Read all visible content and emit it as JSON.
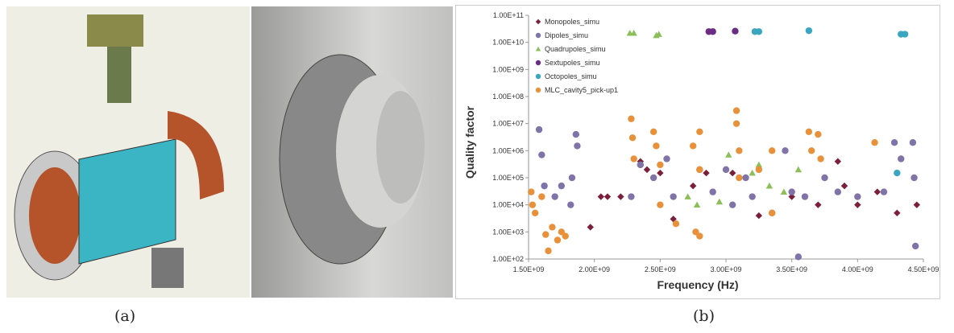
{
  "captions": [
    "(a)",
    "(b)"
  ],
  "chart_data": {
    "type": "scatter",
    "x_label": "Frequency (Hz)",
    "y_label": "Quality factor",
    "log_y": true,
    "legend": "top-left",
    "xlim": [
      1500000000,
      4500000000
    ],
    "xticks": [
      {
        "value": 1500000000,
        "label": "1.50E+09"
      },
      {
        "value": 2000000000,
        "label": "2.00E+09"
      },
      {
        "value": 2500000000,
        "label": "2.50E+09"
      },
      {
        "value": 3000000000,
        "label": "3.00E+09"
      },
      {
        "value": 3500000000,
        "label": "3.50E+09"
      },
      {
        "value": 4000000000,
        "label": "4.00E+09"
      },
      {
        "value": 4500000000,
        "label": "4.50E+09"
      }
    ],
    "ylim": [
      100,
      100000000000
    ],
    "yticks": [
      {
        "value": 100,
        "label": "1.00E+02"
      },
      {
        "value": 1000,
        "label": "1.00E+03"
      },
      {
        "value": 10000,
        "label": "1.00E+04"
      },
      {
        "value": 100000,
        "label": "1.00E+05"
      },
      {
        "value": 1000000,
        "label": "1.00E+06"
      },
      {
        "value": 10000000,
        "label": "1.00E+07"
      },
      {
        "value": 100000000,
        "label": "1.00E+08"
      },
      {
        "value": 1000000000,
        "label": "1.00E+09"
      },
      {
        "value": 10000000000,
        "label": "1.00E+10"
      },
      {
        "value": 100000000000,
        "label": "1.00E+11"
      }
    ],
    "series": [
      {
        "name": "Monopoles_simu",
        "color": "#7b1f3a",
        "marker": "diamond",
        "x": [
          1970000000,
          2050000000,
          2100000000,
          2200000000,
          2350000000,
          2400000000,
          2500000000,
          2600000000,
          2750000000,
          2850000000,
          3050000000,
          3250000000,
          3500000000,
          3700000000,
          3850000000,
          3900000000,
          4000000000,
          4150000000,
          4300000000,
          4450000000
        ],
        "y": [
          1500,
          20000,
          20000,
          20000,
          400000,
          200000,
          150000,
          3000,
          50000,
          150000,
          150000,
          4000,
          20000,
          10000,
          400000,
          50000,
          10000,
          30000,
          5000,
          10000
        ]
      },
      {
        "name": "Dipoles_simu",
        "color": "#7f73a8",
        "marker": "circle",
        "x": [
          1580000000,
          1600000000,
          1620000000,
          1700000000,
          1750000000,
          1820000000,
          1830000000,
          1860000000,
          1870000000,
          2280000000,
          2350000000,
          2450000000,
          2550000000,
          2600000000,
          2800000000,
          2900000000,
          3000000000,
          3050000000,
          3150000000,
          3200000000,
          3350000000,
          3450000000,
          3500000000,
          3550000000,
          3600000000,
          3750000000,
          3850000000,
          4000000000,
          4200000000,
          4280000000,
          4330000000,
          4420000000,
          4430000000,
          4440000000
        ],
        "y": [
          6000000,
          700000,
          50000,
          20000,
          50000,
          10000,
          100000,
          4000000,
          1500000,
          20000,
          300000,
          100000,
          500000,
          20000,
          200000,
          30000,
          200000,
          10000,
          100000,
          20000,
          5000,
          1000000,
          30000,
          120,
          20000,
          100000,
          30000,
          20000,
          30000,
          2000000,
          500000,
          2000000,
          100000,
          300
        ]
      },
      {
        "name": "Quadrupoles_simu",
        "color": "#8cbf5a",
        "marker": "triangle",
        "x": [
          2270000000,
          2300000000,
          2470000000,
          2490000000,
          2710000000,
          2780000000,
          2950000000,
          3020000000,
          3200000000,
          3250000000,
          3330000000,
          3440000000,
          3550000000
        ],
        "y": [
          22000000000,
          22000000000,
          18000000000,
          20000000000,
          20000,
          10000,
          13000,
          700000,
          150000,
          300000,
          50000,
          30000,
          200000
        ]
      },
      {
        "name": "Sextupoles_simu",
        "color": "#6b2d84",
        "marker": "circle",
        "x": [
          2870000000,
          2900000000,
          3070000000
        ],
        "y": [
          25000000000,
          25000000000,
          26000000000
        ]
      },
      {
        "name": "Octopoles_simu",
        "color": "#3aa6c0",
        "marker": "circle",
        "x": [
          3220000000,
          3250000000,
          3630000000,
          4300000000,
          4330000000,
          4360000000
        ],
        "y": [
          25000000000,
          25000000000,
          27000000000,
          150000,
          20000000000,
          20000000000
        ]
      },
      {
        "name": "MLC_cavity5_pick-up1",
        "color": "#e8913a",
        "marker": "circle",
        "x": [
          1520000000,
          1530000000,
          1550000000,
          1600000000,
          1630000000,
          1650000000,
          1680000000,
          1720000000,
          1750000000,
          1780000000,
          2280000000,
          2290000000,
          2300000000,
          2450000000,
          2470000000,
          2500000000,
          2500000000,
          2620000000,
          2750000000,
          2770000000,
          2800000000,
          2800000000,
          2800000000,
          3080000000,
          3080000000,
          3100000000,
          3100000000,
          3250000000,
          3350000000,
          3350000000,
          3630000000,
          3650000000,
          3700000000,
          3720000000,
          4130000000
        ],
        "y": [
          30000,
          10000,
          5000,
          20000,
          800,
          200,
          1500,
          500,
          1000,
          700,
          15000000,
          3000000,
          500000,
          5000000,
          1500000,
          300000,
          10000,
          2000,
          1500000,
          1000,
          5000000,
          200000,
          700,
          30000000,
          10000000,
          1000000,
          100000,
          200000,
          1000000,
          5000,
          5000000,
          1000000,
          4000000,
          500000,
          2000000
        ]
      }
    ]
  }
}
